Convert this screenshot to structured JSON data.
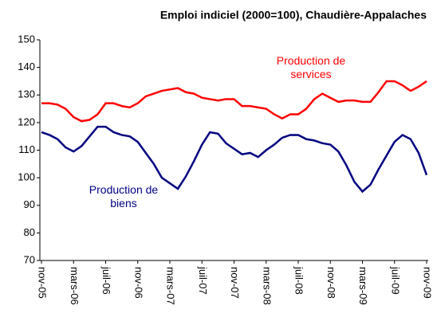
{
  "chart_data": {
    "type": "line",
    "title": "Emploi indiciel (2000=100), Chaudière-Appalaches",
    "categories": [
      "nov-05",
      null,
      null,
      null,
      "mars-06",
      null,
      null,
      null,
      "juil-06",
      null,
      null,
      null,
      "nov-06",
      null,
      null,
      null,
      "mars-07",
      null,
      null,
      null,
      "juil-07",
      null,
      null,
      null,
      "nov-07",
      null,
      null,
      null,
      "mars-08",
      null,
      null,
      null,
      "juil-08",
      null,
      null,
      null,
      "nov-08",
      null,
      null,
      null,
      "mars-09",
      null,
      null,
      null,
      "juil-09",
      null,
      null,
      null,
      "nov-09"
    ],
    "series": [
      {
        "name": "Production de services",
        "color": "#ff0000",
        "values": [
          127,
          127,
          126.5,
          125,
          122,
          120.5,
          121,
          123,
          127,
          127,
          126,
          125.5,
          127,
          129.5,
          130.5,
          131.5,
          132,
          132.5,
          131,
          130.5,
          129,
          128.5,
          128,
          128.5,
          128.5,
          126,
          126,
          125.5,
          125,
          123,
          121.5,
          123,
          123,
          125,
          128.5,
          130.5,
          129,
          127.5,
          128,
          128,
          127.5,
          127.5,
          131,
          135,
          135,
          133.5,
          131.5,
          133,
          135
        ]
      },
      {
        "name": "Production de biens",
        "color": "#000080",
        "values": [
          116.5,
          115.5,
          114,
          111,
          109.5,
          111.5,
          115,
          118.5,
          118.5,
          116.5,
          115.5,
          115,
          113,
          109,
          105,
          100,
          98,
          96,
          100.5,
          106,
          112,
          116.5,
          116,
          112.5,
          110.5,
          108.5,
          109,
          107.5,
          110,
          112,
          114.5,
          115.5,
          115.5,
          114,
          113.5,
          112.5,
          112,
          109.5,
          104.5,
          98.5,
          95,
          97.5,
          103,
          108,
          113,
          115.5,
          114,
          109,
          101
        ]
      }
    ],
    "ylim": [
      70,
      150
    ],
    "yticks": [
      70,
      80,
      90,
      100,
      110,
      120,
      130,
      140,
      150
    ],
    "grid": false
  }
}
